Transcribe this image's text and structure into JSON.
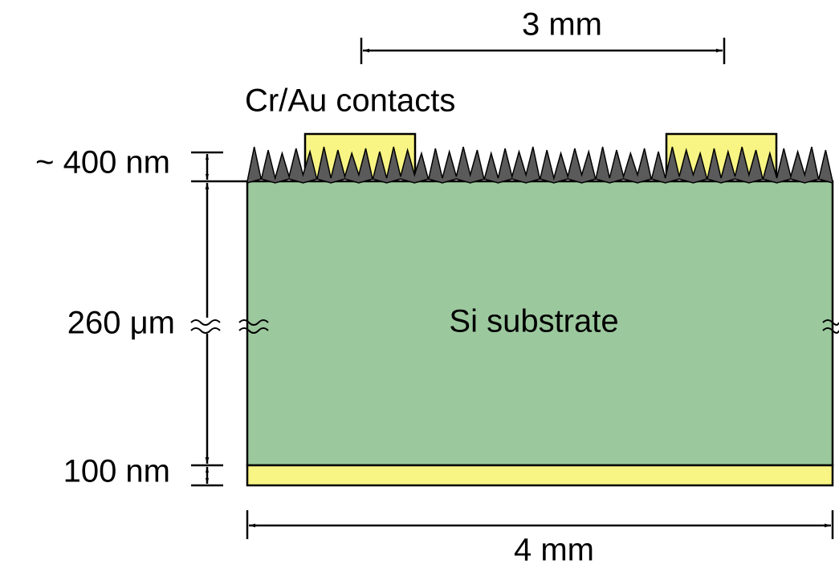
{
  "top_dimension": "3 mm",
  "contacts_label": "Cr/Au contacts",
  "layer_top": "~ 400 nm",
  "substrate_thickness": "260 μm",
  "substrate_label": "Si substrate",
  "layer_bottom": "100 nm",
  "bottom_dimension": "4 mm"
}
